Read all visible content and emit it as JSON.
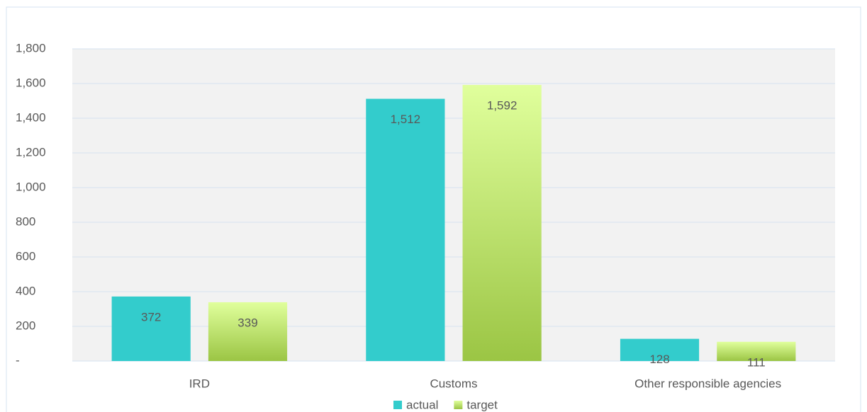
{
  "chart_data": {
    "type": "bar",
    "categories": [
      "IRD",
      "Customs",
      "Other responsible agencies"
    ],
    "series": [
      {
        "name": "actual",
        "color": "#33cccc",
        "values": [
          372,
          1512,
          128
        ],
        "value_labels": [
          "372",
          "1,512",
          "128"
        ]
      },
      {
        "name": "target",
        "color": "#9bc544",
        "values": [
          339,
          1592,
          111
        ],
        "value_labels": [
          "339",
          "1,592",
          "111"
        ]
      }
    ],
    "ylim": [
      0,
      1800
    ],
    "yticks": [
      {
        "value": 0,
        "label": "-"
      },
      200,
      400,
      600,
      800,
      {
        "value": 1000,
        "label": "1,000"
      },
      {
        "value": 1200,
        "label": "1,200"
      },
      {
        "value": 1400,
        "label": "1,400"
      },
      {
        "value": 1600,
        "label": "1,600"
      },
      {
        "value": 1800,
        "label": "1,800"
      }
    ],
    "grid": true,
    "legend": "bottom"
  }
}
